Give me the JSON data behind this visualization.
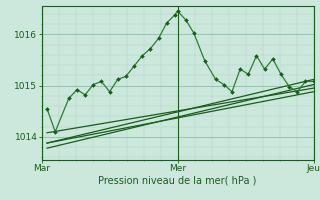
{
  "background_color": "#cce8dc",
  "grid_color_major": "#8abfaa",
  "grid_color_minor": "#a8d4c0",
  "line_color_dark": "#1a5c1a",
  "line_color_mid": "#2e7d32",
  "title": "Pression niveau de la mer( hPa )",
  "xtick_labels": [
    "Mar",
    "Mer",
    "Jeu"
  ],
  "xtick_positions": [
    0.0,
    0.5,
    1.0
  ],
  "ytick_labels": [
    "1014",
    "1015",
    "1016"
  ],
  "ytick_values": [
    1014,
    1015,
    1016
  ],
  "ymin": 1013.55,
  "ymax": 1016.55,
  "series_wavy": [
    [
      0.02,
      1014.55
    ],
    [
      0.05,
      1014.1
    ],
    [
      0.1,
      1014.75
    ],
    [
      0.13,
      1014.92
    ],
    [
      0.16,
      1014.82
    ],
    [
      0.19,
      1015.02
    ],
    [
      0.22,
      1015.08
    ],
    [
      0.25,
      1014.88
    ],
    [
      0.28,
      1015.12
    ],
    [
      0.31,
      1015.18
    ],
    [
      0.34,
      1015.38
    ],
    [
      0.37,
      1015.58
    ],
    [
      0.4,
      1015.72
    ],
    [
      0.43,
      1015.92
    ],
    [
      0.46,
      1016.22
    ],
    [
      0.49,
      1016.38
    ],
    [
      0.5,
      1016.45
    ],
    [
      0.53,
      1016.28
    ],
    [
      0.56,
      1016.02
    ],
    [
      0.6,
      1015.48
    ],
    [
      0.64,
      1015.12
    ],
    [
      0.67,
      1015.02
    ],
    [
      0.7,
      1014.88
    ],
    [
      0.73,
      1015.32
    ],
    [
      0.76,
      1015.22
    ],
    [
      0.79,
      1015.58
    ],
    [
      0.82,
      1015.32
    ],
    [
      0.85,
      1015.52
    ],
    [
      0.88,
      1015.22
    ],
    [
      0.91,
      1014.98
    ],
    [
      0.94,
      1014.88
    ],
    [
      0.97,
      1015.08
    ],
    [
      1.0,
      1015.08
    ]
  ],
  "trend_lines": [
    [
      [
        0.02,
        1014.08
      ],
      [
        1.0,
        1014.95
      ]
    ],
    [
      [
        0.02,
        1013.88
      ],
      [
        1.0,
        1014.88
      ]
    ],
    [
      [
        0.02,
        1013.78
      ],
      [
        1.0,
        1015.02
      ]
    ],
    [
      [
        0.02,
        1013.88
      ],
      [
        1.0,
        1015.12
      ]
    ]
  ],
  "vline_positions": [
    0.0,
    0.5,
    1.0
  ]
}
